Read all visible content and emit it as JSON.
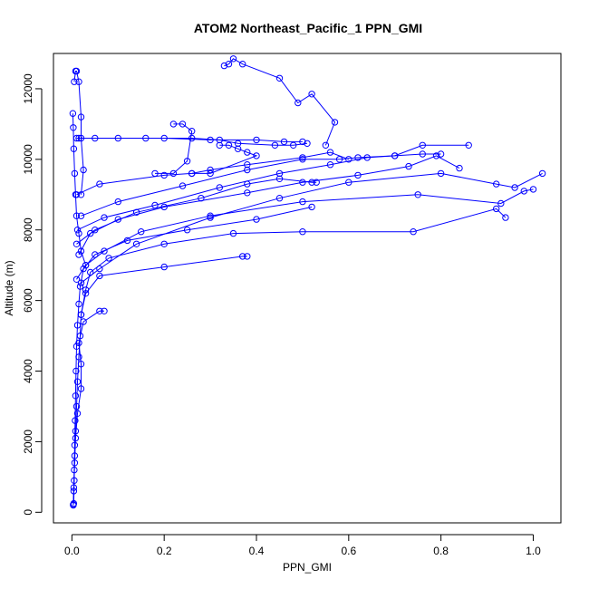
{
  "chart_data": {
    "type": "line",
    "title": "ATOM2 Northeast_Pacific_1 PPN_GMI",
    "xlabel": "PPN_GMI",
    "ylabel": "Altitude (m)",
    "xlim": [
      -0.04,
      1.06
    ],
    "ylim": [
      -300,
      13000
    ],
    "x_ticks": [
      0.0,
      0.2,
      0.4,
      0.6,
      0.8,
      1.0
    ],
    "x_tick_labels": [
      "0.0",
      "0.2",
      "0.4",
      "0.6",
      "0.8",
      "1.0"
    ],
    "y_ticks": [
      0,
      2000,
      4000,
      6000,
      8000,
      10000,
      12000
    ],
    "y_tick_labels": [
      "0",
      "2000",
      "4000",
      "6000",
      "8000",
      "10000",
      "12000"
    ],
    "grid": false,
    "legend": "none",
    "series_color": "#0000ff",
    "series": [
      {
        "points": [
          [
            0.003,
            200
          ],
          [
            0.004,
            600
          ],
          [
            0.005,
            1200
          ],
          [
            0.006,
            1900
          ],
          [
            0.007,
            2600
          ],
          [
            0.008,
            3300
          ],
          [
            0.009,
            4000
          ],
          [
            0.01,
            4700
          ],
          [
            0.012,
            5300
          ],
          [
            0.015,
            5900
          ],
          [
            0.018,
            6400
          ],
          [
            0.025,
            6900
          ],
          [
            0.05,
            7300
          ],
          [
            0.12,
            7700
          ],
          [
            0.25,
            8000
          ],
          [
            0.4,
            8300
          ],
          [
            0.52,
            8650
          ]
        ]
      },
      {
        "points": [
          [
            0.004,
            250
          ],
          [
            0.005,
            900
          ],
          [
            0.006,
            1600
          ],
          [
            0.008,
            2300
          ],
          [
            0.01,
            3000
          ],
          [
            0.012,
            3700
          ],
          [
            0.015,
            4400
          ],
          [
            0.018,
            5000
          ],
          [
            0.02,
            5600
          ],
          [
            0.03,
            6200
          ],
          [
            0.06,
            6700
          ],
          [
            0.2,
            6950
          ],
          [
            0.37,
            7250
          ],
          [
            0.38,
            7250
          ]
        ]
      },
      {
        "points": [
          [
            0.003,
            220
          ],
          [
            0.004,
            700
          ],
          [
            0.006,
            1400
          ],
          [
            0.008,
            2100
          ],
          [
            0.012,
            2800
          ],
          [
            0.02,
            3500
          ],
          [
            0.02,
            4200
          ],
          [
            0.015,
            4800
          ],
          [
            0.025,
            5400
          ],
          [
            0.06,
            5700
          ],
          [
            0.07,
            5700
          ]
        ]
      },
      {
        "points": [
          [
            0.02,
            5600
          ],
          [
            0.03,
            6300
          ],
          [
            0.04,
            6800
          ],
          [
            0.08,
            7200
          ],
          [
            0.2,
            7600
          ],
          [
            0.35,
            7900
          ],
          [
            0.5,
            7950
          ],
          [
            0.74,
            7950
          ],
          [
            0.92,
            8600
          ],
          [
            0.94,
            8350
          ]
        ]
      },
      {
        "points": [
          [
            0.01,
            6600
          ],
          [
            0.03,
            7000
          ],
          [
            0.07,
            7400
          ],
          [
            0.15,
            7950
          ],
          [
            0.3,
            8400
          ],
          [
            0.5,
            8800
          ],
          [
            0.75,
            9000
          ],
          [
            0.93,
            8750
          ],
          [
            0.98,
            9100
          ],
          [
            1.0,
            9150
          ]
        ]
      },
      {
        "points": [
          [
            0.02,
            6500
          ],
          [
            0.06,
            6900
          ],
          [
            0.14,
            7600
          ],
          [
            0.3,
            8350
          ],
          [
            0.45,
            8900
          ],
          [
            0.6,
            9350
          ],
          [
            0.8,
            9600
          ],
          [
            0.92,
            9300
          ],
          [
            0.96,
            9200
          ],
          [
            1.02,
            9600
          ]
        ]
      },
      {
        "points": [
          [
            0.015,
            7300
          ],
          [
            0.04,
            7900
          ],
          [
            0.1,
            8300
          ],
          [
            0.2,
            8650
          ],
          [
            0.38,
            9050
          ],
          [
            0.5,
            9350
          ],
          [
            0.62,
            9550
          ],
          [
            0.73,
            9800
          ],
          [
            0.79,
            10100
          ],
          [
            0.84,
            9750
          ]
        ]
      },
      {
        "points": [
          [
            0.01,
            7600
          ],
          [
            0.05,
            8000
          ],
          [
            0.14,
            8500
          ],
          [
            0.28,
            8900
          ],
          [
            0.38,
            9300
          ],
          [
            0.45,
            9450
          ],
          [
            0.52,
            9350
          ],
          [
            0.53,
            9350
          ]
        ]
      },
      {
        "points": [
          [
            0.012,
            8000
          ],
          [
            0.07,
            8350
          ],
          [
            0.18,
            8700
          ],
          [
            0.32,
            9200
          ],
          [
            0.45,
            9600
          ],
          [
            0.56,
            9850
          ],
          [
            0.64,
            10050
          ],
          [
            0.7,
            10100
          ],
          [
            0.76,
            10150
          ],
          [
            0.8,
            10150
          ]
        ]
      },
      {
        "points": [
          [
            0.02,
            8400
          ],
          [
            0.1,
            8800
          ],
          [
            0.24,
            9250
          ],
          [
            0.38,
            9700
          ],
          [
            0.5,
            10000
          ],
          [
            0.58,
            10000
          ],
          [
            0.62,
            10050
          ],
          [
            0.7,
            10100
          ],
          [
            0.76,
            10400
          ],
          [
            0.86,
            10400
          ]
        ]
      },
      {
        "points": [
          [
            0.01,
            9000
          ],
          [
            0.06,
            9300
          ],
          [
            0.2,
            9550
          ],
          [
            0.26,
            9600
          ],
          [
            0.3,
            9700
          ],
          [
            0.38,
            9850
          ],
          [
            0.5,
            10050
          ],
          [
            0.56,
            10200
          ],
          [
            0.6,
            10000
          ]
        ]
      },
      {
        "points": [
          [
            0.01,
            10600
          ],
          [
            0.1,
            10600
          ],
          [
            0.2,
            10600
          ],
          [
            0.3,
            10550
          ],
          [
            0.4,
            10550
          ],
          [
            0.46,
            10500
          ],
          [
            0.5,
            10500
          ]
        ]
      },
      {
        "points": [
          [
            0.015,
            10600
          ],
          [
            0.05,
            10600
          ],
          [
            0.16,
            10600
          ],
          [
            0.26,
            10600
          ],
          [
            0.32,
            10550
          ],
          [
            0.36,
            10450
          ],
          [
            0.44,
            10400
          ],
          [
            0.48,
            10400
          ],
          [
            0.51,
            10450
          ]
        ]
      },
      {
        "points": [
          [
            0.22,
            11000
          ],
          [
            0.24,
            11000
          ],
          [
            0.26,
            10800
          ],
          [
            0.25,
            9950
          ],
          [
            0.22,
            9600
          ],
          [
            0.18,
            9600
          ]
        ]
      },
      {
        "points": [
          [
            0.32,
            10400
          ],
          [
            0.34,
            10400
          ],
          [
            0.36,
            10300
          ],
          [
            0.38,
            10200
          ],
          [
            0.4,
            10100
          ],
          [
            0.3,
            9600
          ],
          [
            0.26,
            9600
          ]
        ]
      },
      {
        "points": [
          [
            0.33,
            12650
          ],
          [
            0.34,
            12700
          ],
          [
            0.35,
            12850
          ],
          [
            0.37,
            12700
          ],
          [
            0.45,
            12300
          ],
          [
            0.49,
            11600
          ],
          [
            0.52,
            11850
          ],
          [
            0.57,
            11050
          ],
          [
            0.55,
            10400
          ]
        ]
      },
      {
        "points": [
          [
            0.005,
            12200
          ],
          [
            0.008,
            12500
          ],
          [
            0.01,
            12500
          ],
          [
            0.015,
            12200
          ],
          [
            0.02,
            11200
          ],
          [
            0.02,
            10600
          ],
          [
            0.025,
            9700
          ],
          [
            0.02,
            9000
          ]
        ]
      },
      {
        "points": [
          [
            0.002,
            11300
          ],
          [
            0.003,
            10900
          ],
          [
            0.004,
            10300
          ],
          [
            0.006,
            9600
          ],
          [
            0.008,
            9000
          ],
          [
            0.01,
            8400
          ],
          [
            0.015,
            7900
          ],
          [
            0.02,
            7400
          ],
          [
            0.03,
            7000
          ]
        ]
      }
    ]
  }
}
